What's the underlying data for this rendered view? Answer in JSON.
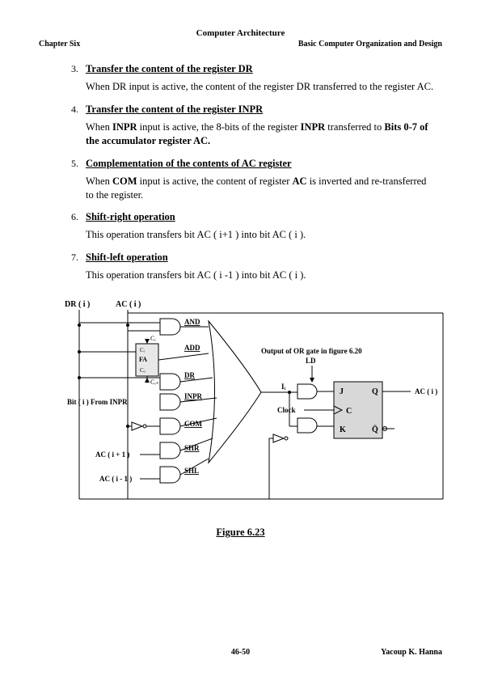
{
  "header": {
    "title": "Computer Architecture",
    "left": "Chapter Six",
    "right": "Basic Computer Organization and Design"
  },
  "items": [
    {
      "num": "3.",
      "title": "Transfer the content of the register DR",
      "body": "When DR input is active, the content of the register DR transferred to the register AC."
    },
    {
      "num": "4.",
      "title": "Transfer the content of the register INPR",
      "body_html": "When <b>INPR</b> input is active, the 8-bits of the register <b>INPR</b> transferred to <b>Bits 0-7 of the accumulator register AC.</b>"
    },
    {
      "num": "5.",
      "title": "Complementation of the contents of AC register",
      "body_html": "When <b>COM</b> input is active, the content of register <b>AC</b> is inverted and re-transferred to the register."
    },
    {
      "num": "6.",
      "title": "Shift-right operation",
      "body": "This operation transfers bit AC ( i+1 ) into bit AC ( i )."
    },
    {
      "num": "7.",
      "title": "Shift-left operation",
      "body": "This operation transfers bit AC ( i -1 ) into bit AC ( i )."
    }
  ],
  "figure": {
    "caption": "Figure 6.23",
    "labels": {
      "dr_i": "DR ( i )",
      "ac_i": "AC ( i )",
      "and": "AND",
      "add": "ADD",
      "dr": "DR",
      "inpr": "INPR",
      "com": "COM",
      "shr": "SHR",
      "shl": "SHL",
      "bit_from_inpr": "Bit ( i ) From INPR",
      "ac_i_plus1": "AC ( i + 1 )",
      "ac_i_minus1": "AC ( i - 1 )",
      "output_text1": "Output of OR gate in figure 6.20",
      "output_text2": "LD",
      "clock": "Clock",
      "j": "J",
      "q": "Q",
      "c": "C",
      "k": "K",
      "qbar": "Q̄",
      "ac_i_out": "AC ( i )",
      "fa_ci": "Cᵢ",
      "fa_label1": "Cᵢ",
      "fa_label2": "FA",
      "fa_label3": "Cₒ",
      "fa_ci1": "Cᵢ₊₁",
      "ii": "Iᵢ"
    },
    "colors": {
      "stroke": "#000000",
      "fill_fa": "#e8e8e8",
      "fill_ff": "#d8d8d8",
      "bg": "#ffffff"
    }
  },
  "footer": {
    "page": "46-50",
    "author": "Yacoup K. Hanna"
  }
}
